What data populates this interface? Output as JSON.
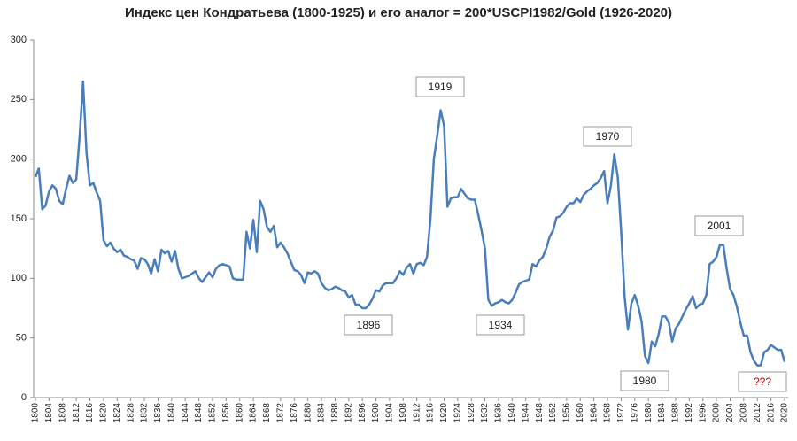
{
  "chart_data": {
    "type": "line",
    "title": "Индекс цен Кондратьева  (1800-1925) и его аналог = 200*USCPI1982/Gold (1926-2020)",
    "x": [
      1800,
      1801,
      1802,
      1803,
      1804,
      1805,
      1806,
      1807,
      1808,
      1809,
      1810,
      1811,
      1812,
      1813,
      1814,
      1815,
      1816,
      1817,
      1818,
      1819,
      1820,
      1821,
      1822,
      1823,
      1824,
      1825,
      1826,
      1827,
      1828,
      1829,
      1830,
      1831,
      1832,
      1833,
      1834,
      1835,
      1836,
      1837,
      1838,
      1839,
      1840,
      1841,
      1842,
      1843,
      1844,
      1845,
      1846,
      1847,
      1848,
      1849,
      1850,
      1851,
      1852,
      1853,
      1854,
      1855,
      1856,
      1857,
      1858,
      1859,
      1860,
      1861,
      1862,
      1863,
      1864,
      1865,
      1866,
      1867,
      1868,
      1869,
      1870,
      1871,
      1872,
      1873,
      1874,
      1875,
      1876,
      1877,
      1878,
      1879,
      1880,
      1881,
      1882,
      1883,
      1884,
      1885,
      1886,
      1887,
      1888,
      1889,
      1890,
      1891,
      1892,
      1893,
      1894,
      1895,
      1896,
      1897,
      1898,
      1899,
      1900,
      1901,
      1902,
      1903,
      1904,
      1905,
      1906,
      1907,
      1908,
      1909,
      1910,
      1911,
      1912,
      1913,
      1914,
      1915,
      1916,
      1917,
      1918,
      1919,
      1920,
      1921,
      1922,
      1923,
      1924,
      1925,
      1926,
      1927,
      1928,
      1929,
      1930,
      1931,
      1932,
      1933,
      1934,
      1935,
      1936,
      1937,
      1938,
      1939,
      1940,
      1941,
      1942,
      1943,
      1944,
      1945,
      1946,
      1947,
      1948,
      1949,
      1950,
      1951,
      1952,
      1953,
      1954,
      1955,
      1956,
      1957,
      1958,
      1959,
      1960,
      1961,
      1962,
      1963,
      1964,
      1965,
      1966,
      1967,
      1968,
      1969,
      1970,
      1971,
      1972,
      1973,
      1974,
      1975,
      1976,
      1977,
      1978,
      1979,
      1980,
      1981,
      1982,
      1983,
      1984,
      1985,
      1986,
      1987,
      1988,
      1989,
      1990,
      1991,
      1992,
      1993,
      1994,
      1995,
      1996,
      1997,
      1998,
      1999,
      2000,
      2001,
      2002,
      2003,
      2004,
      2005,
      2006,
      2007,
      2008,
      2009,
      2010,
      2011,
      2012,
      2013,
      2014,
      2015,
      2016,
      2017,
      2018,
      2019,
      2020
    ],
    "values": [
      185,
      192,
      158,
      161,
      173,
      178,
      175,
      165,
      162,
      175,
      186,
      180,
      183,
      220,
      265,
      205,
      178,
      180,
      172,
      165,
      132,
      127,
      130,
      125,
      122,
      124,
      119,
      118,
      116,
      115,
      108,
      117,
      116,
      112,
      104,
      116,
      106,
      124,
      121,
      123,
      114,
      123,
      108,
      100,
      101,
      102,
      104,
      106,
      100,
      97,
      101,
      105,
      101,
      108,
      111,
      112,
      111,
      110,
      100,
      99,
      99,
      99,
      139,
      125,
      149,
      122,
      165,
      158,
      143,
      139,
      144,
      126,
      130,
      126,
      121,
      114,
      107,
      106,
      103,
      96,
      105,
      104,
      106,
      104,
      96,
      92,
      90,
      91,
      93,
      92,
      90,
      89,
      84,
      86,
      78,
      78,
      75,
      75,
      78,
      83,
      90,
      89,
      94,
      96,
      96,
      96,
      100,
      106,
      103,
      109,
      112,
      104,
      112,
      113,
      111,
      118,
      150,
      200,
      220,
      241,
      228,
      160,
      167,
      168,
      168,
      175,
      171,
      167,
      166,
      166,
      154,
      140,
      125,
      82,
      77,
      79,
      80,
      82,
      80,
      79,
      82,
      88,
      95,
      97,
      98,
      99,
      112,
      110,
      115,
      118,
      125,
      135,
      140,
      151,
      152,
      155,
      160,
      163,
      163,
      167,
      164,
      170,
      173,
      175,
      178,
      180,
      184,
      190,
      163,
      178,
      204,
      185,
      140,
      85,
      57,
      79,
      86,
      77,
      64,
      35,
      29,
      47,
      43,
      53,
      68,
      68,
      63,
      47,
      58,
      62,
      68,
      74,
      79,
      85,
      75,
      78,
      79,
      86,
      112,
      114,
      118,
      128,
      128,
      108,
      91,
      86,
      76,
      63,
      52,
      52,
      38,
      31,
      27,
      27,
      38,
      40,
      44,
      42,
      40,
      40,
      30
    ],
    "color": "#4a7ebb",
    "xlim": [
      1800,
      2020
    ],
    "xticks": [
      1800,
      1804,
      1808,
      1812,
      1816,
      1820,
      1824,
      1828,
      1832,
      1836,
      1840,
      1844,
      1848,
      1852,
      1856,
      1860,
      1864,
      1868,
      1872,
      1876,
      1880,
      1884,
      1888,
      1892,
      1896,
      1900,
      1904,
      1908,
      1912,
      1916,
      1920,
      1924,
      1928,
      1932,
      1936,
      1940,
      1944,
      1948,
      1952,
      1956,
      1960,
      1964,
      1968,
      1972,
      1976,
      1980,
      1984,
      1988,
      1992,
      1996,
      2000,
      2004,
      2008,
      2012,
      2016,
      2020
    ],
    "ylim": [
      0,
      300
    ],
    "yticks": [
      0,
      50,
      100,
      150,
      200,
      250,
      300
    ],
    "grid": false,
    "annotations": [
      "1919",
      "1896",
      "1934",
      "1970",
      "1980",
      "2001",
      "???"
    ]
  }
}
